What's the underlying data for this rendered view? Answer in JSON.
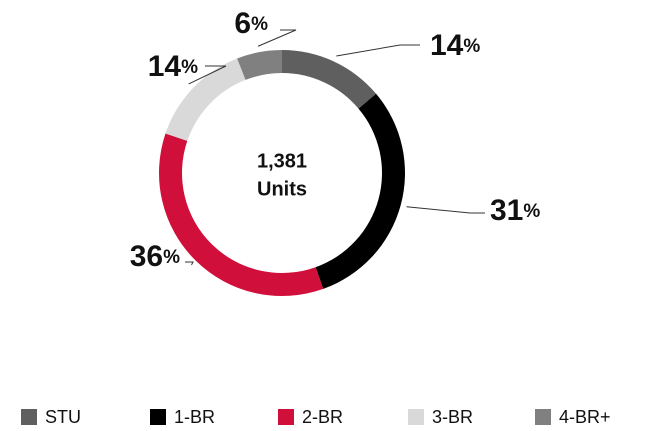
{
  "chart_data": {
    "type": "donut",
    "center_lines": [
      "1,381",
      "Units"
    ],
    "categories": [
      "STU",
      "1-BR",
      "2-BR",
      "3-BR",
      "4-BR+"
    ],
    "values": [
      14,
      31,
      36,
      14,
      6
    ],
    "value_labels": [
      "14%",
      "31%",
      "36%",
      "14%",
      "6%"
    ],
    "colors": [
      "#5f5f5f",
      "#000000",
      "#d0103a",
      "#d9d9d9",
      "#808080"
    ],
    "legend": "bottom"
  }
}
